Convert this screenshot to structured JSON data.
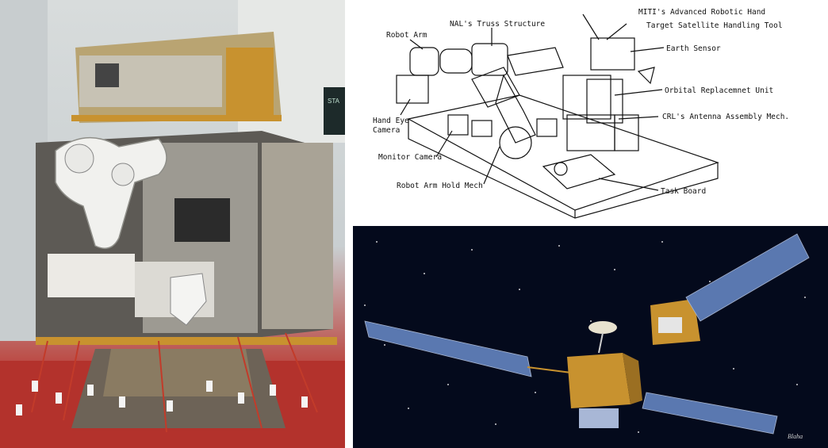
{
  "diagram": {
    "labels": {
      "robot_arm": "Robot Arm",
      "nal_truss": "NAL's Truss Structure",
      "miti_hand": "MITI's Advanced Robotic Hand",
      "target_tool": "Target Satellite Handling Tool",
      "earth_sensor": "Earth Sensor",
      "hand_eye_1": "Hand Eye",
      "hand_eye_2": "Camera",
      "oru": "Orbital Replacemnet Unit",
      "crl": "CRL's Antenna Assembly Mech.",
      "monitor_camera": "Monitor Camera",
      "hold_mech": "Robot Arm Hold Mech",
      "task_board": "Task Board"
    }
  },
  "photo": {
    "sign_text": "STA"
  },
  "space": {
    "signature": "Blaha"
  },
  "colors": {
    "gold_foil": "#c8922f",
    "panel_blue": "#5a78b0",
    "floor_red": "#b3322c"
  }
}
